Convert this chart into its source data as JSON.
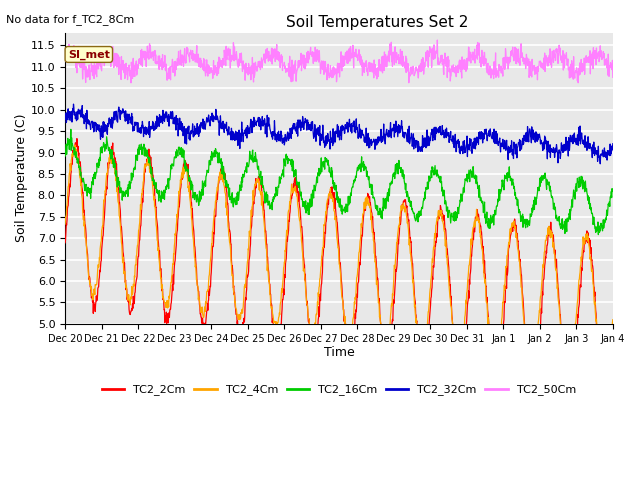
{
  "title": "Soil Temperatures Set 2",
  "no_data_text": "No data for f_TC2_8Cm",
  "annotation_text": "SI_met",
  "xlabel": "Time",
  "ylabel": "Soil Temperature (C)",
  "ylim": [
    5.0,
    11.8
  ],
  "yticks": [
    5.0,
    5.5,
    6.0,
    6.5,
    7.0,
    7.5,
    8.0,
    8.5,
    9.0,
    9.5,
    10.0,
    10.5,
    11.0,
    11.5
  ],
  "axes_bg_color": "#e8e8e8",
  "grid_color": "#ffffff",
  "colors": {
    "TC2_2Cm": "#ff0000",
    "TC2_4Cm": "#ffa500",
    "TC2_16Cm": "#00cc00",
    "TC2_32Cm": "#0000cc",
    "TC2_50Cm": "#ff80ff"
  },
  "tick_labels": [
    "Dec 20",
    "Dec 21",
    "Dec 22",
    "Dec 23",
    "Dec 24",
    "Dec 25",
    "Dec 26",
    "Dec 27",
    "Dec 28",
    "Dec 29",
    "Dec 30",
    "Dec 31",
    "Jan 1",
    "Jan 2",
    "Jan 3",
    "Jan 4"
  ],
  "tick_positions": [
    0,
    1,
    2,
    3,
    4,
    5,
    6,
    7,
    8,
    9,
    10,
    11,
    12,
    13,
    14,
    15
  ]
}
